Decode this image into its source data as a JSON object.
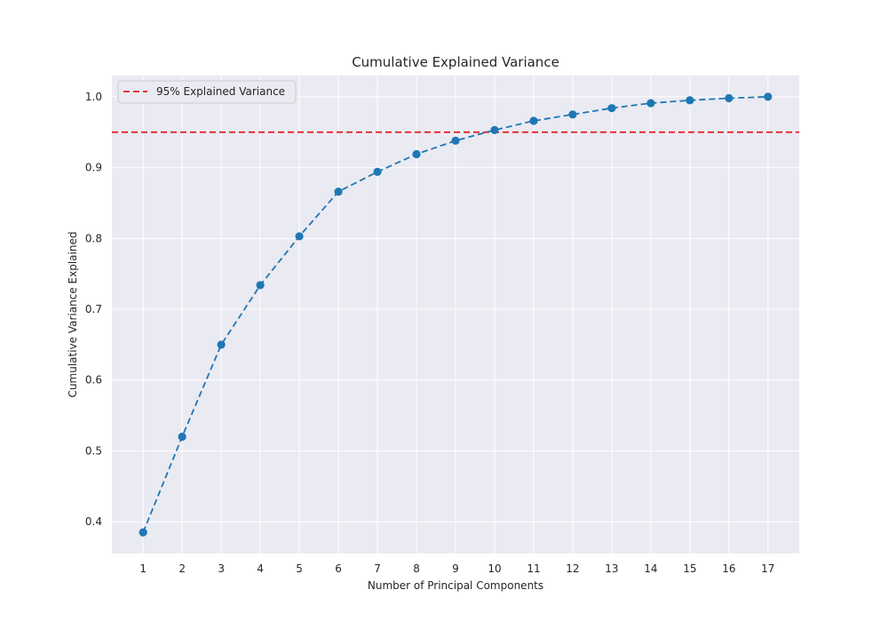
{
  "chart_data": {
    "type": "line",
    "title": "Cumulative Explained Variance",
    "xlabel": "Number of Principal Components",
    "ylabel": "Cumulative Variance Explained",
    "x": [
      1,
      2,
      3,
      4,
      5,
      6,
      7,
      8,
      9,
      10,
      11,
      12,
      13,
      14,
      15,
      16,
      17
    ],
    "series": [
      {
        "values": [
          0.385,
          0.52,
          0.65,
          0.734,
          0.803,
          0.866,
          0.894,
          0.919,
          0.938,
          0.953,
          0.966,
          0.975,
          0.984,
          0.991,
          0.995,
          0.998,
          1.0
        ],
        "color": "#1f77b4",
        "line_style": "dashed",
        "marker": "circle"
      }
    ],
    "threshold": {
      "name": "95% Explained Variance",
      "value": 0.95,
      "color": "#e41a1c",
      "line_style": "dashed"
    },
    "xlim": [
      0.2,
      17.8
    ],
    "ylim": [
      0.355,
      1.03
    ],
    "yticks": [
      "0.4",
      "0.5",
      "0.6",
      "0.7",
      "0.8",
      "0.9",
      "1.0"
    ],
    "xticks": [
      "1",
      "2",
      "3",
      "4",
      "5",
      "6",
      "7",
      "8",
      "9",
      "10",
      "11",
      "12",
      "13",
      "14",
      "15",
      "16",
      "17"
    ],
    "grid": true,
    "legend_position": "top-left",
    "background_color": "#eaeaf2"
  }
}
